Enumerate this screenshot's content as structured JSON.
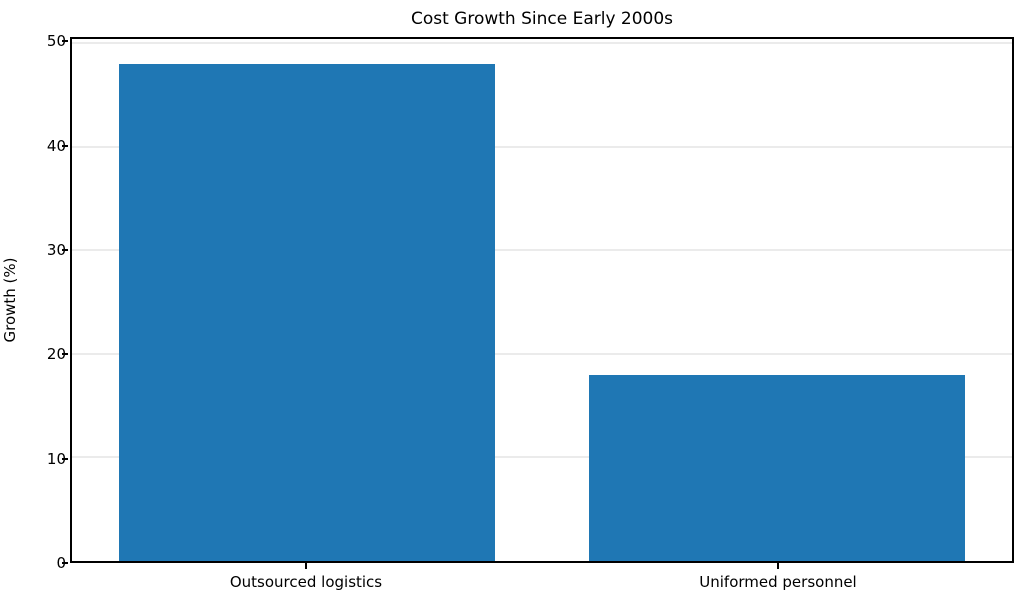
{
  "chart_data": {
    "type": "bar",
    "title": "Cost Growth Since Early 2000s",
    "categories": [
      "Outsourced logistics",
      "Uniformed personnel"
    ],
    "values": [
      48,
      18
    ],
    "xlabel": "",
    "ylabel": "Growth (%)",
    "ylim": [
      0,
      50.4
    ],
    "yticks": [
      0,
      10,
      20,
      30,
      40,
      50
    ],
    "bar_width_fraction": 0.8,
    "bar_color": "#1f77b4",
    "grid": "horizontal",
    "grid_color": "#ebebeb",
    "spine_color": "#000000",
    "background": "#ffffff",
    "legend": "none"
  }
}
